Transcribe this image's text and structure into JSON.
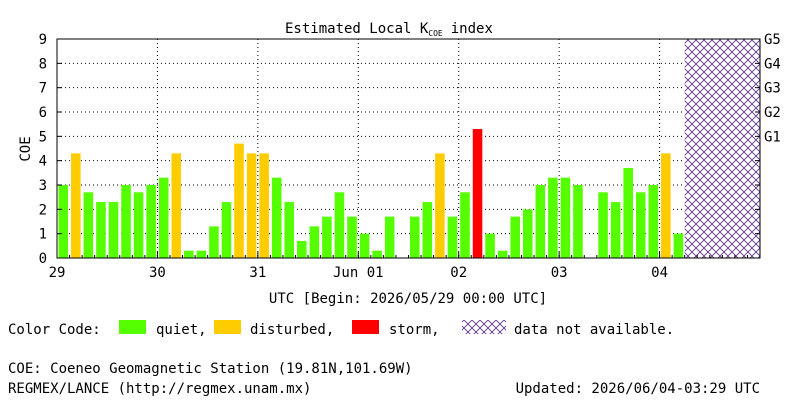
{
  "chart_data": {
    "type": "bar",
    "title_main": "Estimated Local K",
    "title_subscript": "COE",
    "title_suffix": "index",
    "ylabel": "COE",
    "ylim": [
      0,
      9
    ],
    "y_ticks": [
      "0",
      "1",
      "2",
      "3",
      "4",
      "5",
      "6",
      "7",
      "8",
      "9"
    ],
    "g_scale": [
      {
        "label": "G1",
        "value": 5
      },
      {
        "label": "G2",
        "value": 6
      },
      {
        "label": "G3",
        "value": 7
      },
      {
        "label": "G4",
        "value": 8
      },
      {
        "label": "G5",
        "value": 9
      }
    ],
    "x_ticks": [
      {
        "label": "29",
        "day_offset": 0
      },
      {
        "label": "30",
        "day_offset": 1
      },
      {
        "label": "31",
        "day_offset": 2
      },
      {
        "label": "Jun 01",
        "day_offset": 3
      },
      {
        "label": "02",
        "day_offset": 4
      },
      {
        "label": "03",
        "day_offset": 5
      },
      {
        "label": "04",
        "day_offset": 6
      }
    ],
    "x_range_days": 7,
    "grid": true,
    "xlabel": "UTC [Begin: 2026/05/29 00:00 UTC]",
    "values": [
      3.0,
      4.3,
      2.7,
      2.3,
      2.3,
      3.0,
      2.7,
      3.0,
      3.3,
      4.3,
      0.3,
      0.3,
      1.3,
      2.3,
      4.7,
      4.3,
      4.3,
      3.3,
      2.3,
      0.7,
      1.3,
      1.7,
      2.7,
      1.7,
      1.0,
      0.3,
      1.7,
      0.0,
      1.7,
      2.3,
      4.3,
      1.7,
      2.7,
      5.3,
      1.0,
      0.3,
      1.7,
      2.0,
      3.0,
      3.3,
      3.3,
      3.0,
      0.0,
      2.7,
      2.3,
      3.7,
      2.7,
      3.0,
      4.3,
      1.0
    ],
    "bar_slots_per_day": 8,
    "no_data_start_day": 6.25,
    "colors": {
      "quiet": "#55ff00",
      "disturbed": "#ffcc00",
      "storm": "#ff0000",
      "no_data": "#5a2d8a"
    },
    "legend": {
      "label": "Color Code:",
      "quiet": "quiet,",
      "disturbed": "disturbed,",
      "storm": "storm,",
      "no_data": "data not available."
    }
  },
  "footer": {
    "station": "COE: Coeneo Geomagnetic Station (19.81N,101.69W)",
    "source": "REGMEX/LANCE (http://regmex.unam.mx)",
    "updated": "Updated: 2026/06/04-03:29 UTC"
  }
}
